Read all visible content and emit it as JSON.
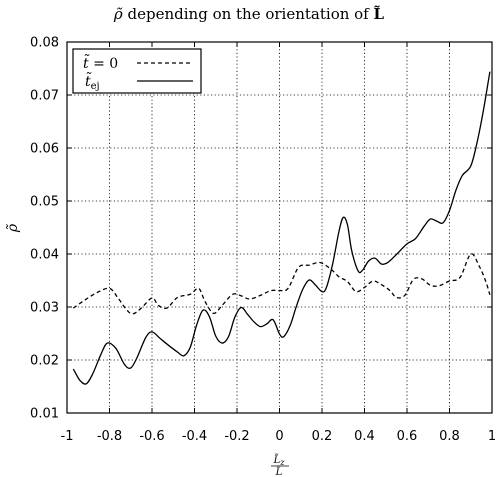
{
  "chart_data": {
    "type": "line",
    "title": {
      "prefix": "ρ̃",
      "middle": " depending on the orientation of ",
      "suffix": "L̃"
    },
    "xlabel": {
      "num": "L̃",
      "num_sub": "z",
      "den": "L̃"
    },
    "ylabel": "ρ̃",
    "xlim": [
      -1,
      1
    ],
    "ylim": [
      0.01,
      0.08
    ],
    "xticks": [
      -1,
      -0.8,
      -0.6,
      -0.4,
      -0.2,
      0,
      0.2,
      0.4,
      0.6,
      0.8,
      1
    ],
    "xtick_labels": [
      "-1",
      "-0.8",
      "-0.6",
      "-0.4",
      "-0.2",
      "0",
      "0.2",
      "0.4",
      "0.6",
      "0.8",
      "1"
    ],
    "yticks": [
      0.01,
      0.02,
      0.03,
      0.04,
      0.05,
      0.06,
      0.07,
      0.08
    ],
    "ytick_labels": [
      "0.01",
      "0.02",
      "0.03",
      "0.04",
      "0.05",
      "0.06",
      "0.07",
      "0.08"
    ],
    "grid": true,
    "legend_position": "top-left",
    "series": [
      {
        "name": "t̃ = 0",
        "name_main": "t̃",
        "name_sub": "",
        "name_rest": " = 0",
        "style": "dashed",
        "color": "#000000",
        "points": [
          [
            -0.97,
            0.0298
          ],
          [
            -0.92,
            0.0312
          ],
          [
            -0.86,
            0.0327
          ],
          [
            -0.8,
            0.0335
          ],
          [
            -0.76,
            0.0317
          ],
          [
            -0.72,
            0.0295
          ],
          [
            -0.69,
            0.0287
          ],
          [
            -0.65,
            0.0298
          ],
          [
            -0.6,
            0.0317
          ],
          [
            -0.57,
            0.0303
          ],
          [
            -0.53,
            0.0298
          ],
          [
            -0.48,
            0.0318
          ],
          [
            -0.42,
            0.0324
          ],
          [
            -0.38,
            0.0335
          ],
          [
            -0.35,
            0.031
          ],
          [
            -0.31,
            0.0288
          ],
          [
            -0.27,
            0.0303
          ],
          [
            -0.22,
            0.0324
          ],
          [
            -0.18,
            0.0321
          ],
          [
            -0.14,
            0.0315
          ],
          [
            -0.09,
            0.0322
          ],
          [
            -0.04,
            0.0331
          ],
          [
            0.0,
            0.0331
          ],
          [
            0.04,
            0.0335
          ],
          [
            0.09,
            0.0375
          ],
          [
            0.14,
            0.0379
          ],
          [
            0.19,
            0.0384
          ],
          [
            0.24,
            0.0372
          ],
          [
            0.28,
            0.0357
          ],
          [
            0.32,
            0.0348
          ],
          [
            0.36,
            0.0329
          ],
          [
            0.4,
            0.0337
          ],
          [
            0.44,
            0.0349
          ],
          [
            0.48,
            0.0342
          ],
          [
            0.52,
            0.0331
          ],
          [
            0.55,
            0.0318
          ],
          [
            0.59,
            0.0322
          ],
          [
            0.63,
            0.0352
          ],
          [
            0.67,
            0.0353
          ],
          [
            0.71,
            0.0341
          ],
          [
            0.75,
            0.034
          ],
          [
            0.8,
            0.0349
          ],
          [
            0.85,
            0.0356
          ],
          [
            0.9,
            0.04
          ],
          [
            0.94,
            0.0377
          ],
          [
            0.97,
            0.0349
          ],
          [
            0.99,
            0.0323
          ]
        ]
      },
      {
        "name": "t̃ej",
        "name_main": "t̃",
        "name_sub": "ej",
        "name_rest": "",
        "style": "solid",
        "color": "#000000",
        "points": [
          [
            -0.97,
            0.0183
          ],
          [
            -0.94,
            0.0162
          ],
          [
            -0.91,
            0.0155
          ],
          [
            -0.88,
            0.0173
          ],
          [
            -0.84,
            0.0211
          ],
          [
            -0.81,
            0.0232
          ],
          [
            -0.77,
            0.0222
          ],
          [
            -0.73,
            0.0192
          ],
          [
            -0.7,
            0.0185
          ],
          [
            -0.67,
            0.0205
          ],
          [
            -0.63,
            0.0242
          ],
          [
            -0.6,
            0.0253
          ],
          [
            -0.56,
            0.024
          ],
          [
            -0.52,
            0.0227
          ],
          [
            -0.48,
            0.0215
          ],
          [
            -0.45,
            0.0208
          ],
          [
            -0.42,
            0.0224
          ],
          [
            -0.39,
            0.0266
          ],
          [
            -0.36,
            0.0294
          ],
          [
            -0.33,
            0.0282
          ],
          [
            -0.3,
            0.0245
          ],
          [
            -0.27,
            0.0232
          ],
          [
            -0.24,
            0.0244
          ],
          [
            -0.21,
            0.0281
          ],
          [
            -0.18,
            0.0299
          ],
          [
            -0.15,
            0.0286
          ],
          [
            -0.12,
            0.0272
          ],
          [
            -0.09,
            0.0263
          ],
          [
            -0.06,
            0.0268
          ],
          [
            -0.03,
            0.0276
          ],
          [
            0.0,
            0.0249
          ],
          [
            0.02,
            0.0244
          ],
          [
            0.05,
            0.0265
          ],
          [
            0.08,
            0.0302
          ],
          [
            0.11,
            0.0334
          ],
          [
            0.14,
            0.0351
          ],
          [
            0.17,
            0.0341
          ],
          [
            0.2,
            0.0329
          ],
          [
            0.22,
            0.0336
          ],
          [
            0.25,
            0.0381
          ],
          [
            0.28,
            0.0443
          ],
          [
            0.3,
            0.0469
          ],
          [
            0.32,
            0.0455
          ],
          [
            0.34,
            0.0406
          ],
          [
            0.37,
            0.0368
          ],
          [
            0.39,
            0.0369
          ],
          [
            0.42,
            0.0387
          ],
          [
            0.45,
            0.0392
          ],
          [
            0.48,
            0.0381
          ],
          [
            0.51,
            0.0384
          ],
          [
            0.55,
            0.0399
          ],
          [
            0.6,
            0.0419
          ],
          [
            0.64,
            0.0429
          ],
          [
            0.68,
            0.0452
          ],
          [
            0.71,
            0.0466
          ],
          [
            0.74,
            0.0462
          ],
          [
            0.77,
            0.0459
          ],
          [
            0.8,
            0.0482
          ],
          [
            0.83,
            0.052
          ],
          [
            0.86,
            0.0548
          ],
          [
            0.9,
            0.0566
          ],
          [
            0.93,
            0.0611
          ],
          [
            0.96,
            0.0672
          ],
          [
            0.99,
            0.0744
          ]
        ]
      }
    ]
  }
}
